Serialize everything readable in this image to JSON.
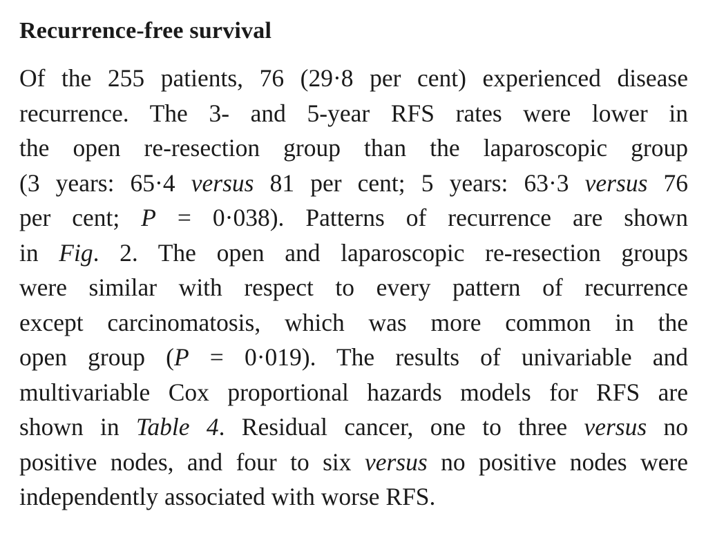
{
  "section": {
    "heading": "Recurrence-free survival",
    "lines": [
      [
        {
          "text": "Of the 255 patients, 76 (29·8 per cent) experienced disease",
          "italic": false
        }
      ],
      [
        {
          "text": "recurrence. The 3- and 5-year RFS rates were lower in",
          "italic": false
        }
      ],
      [
        {
          "text": "the open re-resection group than the laparoscopic group",
          "italic": false
        }
      ],
      [
        {
          "text": "(3 years: 65·4 ",
          "italic": false
        },
        {
          "text": "versus",
          "italic": true
        },
        {
          "text": " 81 per cent; 5 years: 63·3 ",
          "italic": false
        },
        {
          "text": "versus",
          "italic": true
        },
        {
          "text": " 76",
          "italic": false
        }
      ],
      [
        {
          "text": "per cent; ",
          "italic": false
        },
        {
          "text": "P",
          "italic": true
        },
        {
          "text": " = 0·038). Patterns of recurrence are shown",
          "italic": false
        }
      ],
      [
        {
          "text": "in ",
          "italic": false
        },
        {
          "text": "Fig",
          "italic": true
        },
        {
          "text": ". 2. The open and laparoscopic re-resection groups",
          "italic": false
        }
      ],
      [
        {
          "text": "were similar with respect to every pattern of recurrence",
          "italic": false
        }
      ],
      [
        {
          "text": "except carcinomatosis, which was more common in the",
          "italic": false
        }
      ],
      [
        {
          "text": "open group (",
          "italic": false
        },
        {
          "text": "P",
          "italic": true
        },
        {
          "text": " = 0·019). The results of univariable and",
          "italic": false
        }
      ],
      [
        {
          "text": "multivariable Cox proportional hazards models for RFS are",
          "italic": false
        }
      ],
      [
        {
          "text": "shown in ",
          "italic": false
        },
        {
          "text": "Table 4",
          "italic": true
        },
        {
          "text": ". Residual cancer, one to three ",
          "italic": false
        },
        {
          "text": "versus",
          "italic": true
        },
        {
          "text": " no",
          "italic": false
        }
      ],
      [
        {
          "text": "positive nodes, and four to six ",
          "italic": false
        },
        {
          "text": "versus",
          "italic": true
        },
        {
          "text": " no positive nodes were",
          "italic": false
        }
      ],
      [
        {
          "text": "independently associated with worse RFS.",
          "italic": false
        }
      ]
    ]
  }
}
